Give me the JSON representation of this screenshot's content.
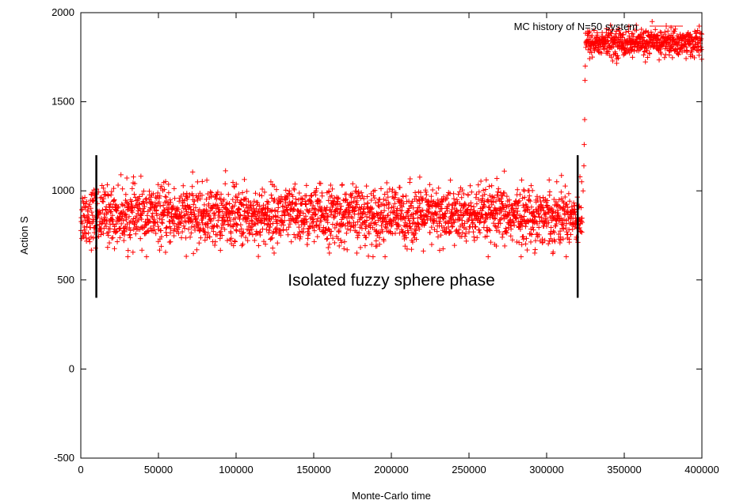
{
  "chart_data": {
    "type": "scatter",
    "title": "",
    "xlabel": "Monte-Carlo time",
    "ylabel": "Action S",
    "xlim": [
      0,
      400000
    ],
    "ylim": [
      -500,
      2000
    ],
    "x_ticks": [
      "0",
      "50000",
      "100000",
      "150000",
      "200000",
      "250000",
      "300000",
      "350000",
      "400000"
    ],
    "y_ticks": [
      "-500",
      "0",
      "500",
      "1000",
      "1500",
      "2000"
    ],
    "x_tick_values": [
      0,
      50000,
      100000,
      150000,
      200000,
      250000,
      300000,
      350000,
      400000
    ],
    "y_tick_values": [
      -500,
      0,
      500,
      1000,
      1500,
      2000
    ],
    "grid": false,
    "legend_position": "top-right",
    "series": [
      {
        "name": "MC history of N=50 system",
        "color": "#ff0000",
        "marker": "plus",
        "segments": [
          {
            "x_start": 0,
            "x_end": 323000,
            "mean": 860,
            "spread": 80,
            "min": 630,
            "max": 1120
          },
          {
            "x_start": 325000,
            "x_end": 400000,
            "mean": 1830,
            "spread": 38,
            "min": 1700,
            "max": 1950
          }
        ],
        "transition_points": [
          {
            "x": 323500,
            "y": 1000
          },
          {
            "x": 324000,
            "y": 1140
          },
          {
            "x": 324200,
            "y": 1260
          },
          {
            "x": 324500,
            "y": 1400
          },
          {
            "x": 324700,
            "y": 1620
          },
          {
            "x": 324900,
            "y": 1700
          }
        ]
      }
    ],
    "annotations": [
      {
        "text": "Isolated fuzzy sphere phase",
        "x": 200000,
        "y": 500
      }
    ],
    "markers": [
      {
        "type": "vertical-line",
        "x": 10000,
        "y_from": 400,
        "y_to": 1200,
        "color": "#000000"
      },
      {
        "type": "vertical-line",
        "x": 320000,
        "y_from": 400,
        "y_to": 1200,
        "color": "#000000"
      }
    ]
  }
}
